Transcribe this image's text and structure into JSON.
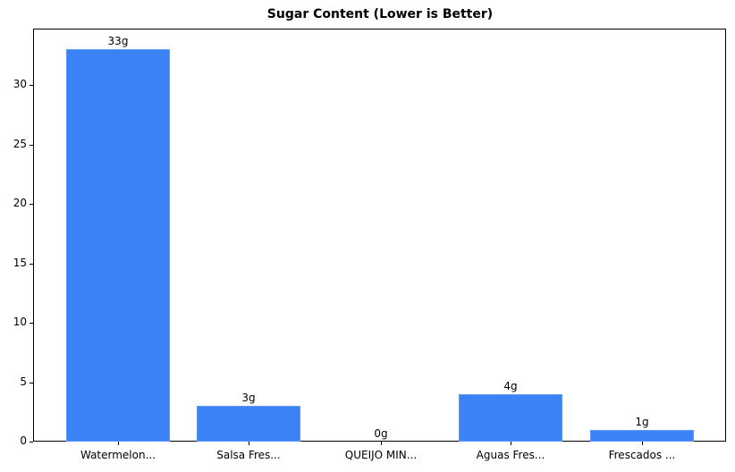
{
  "chart_data": {
    "type": "bar",
    "title": "Sugar Content (Lower is Better)",
    "xlabel": "",
    "ylabel": "",
    "categories": [
      "Watermelon...",
      "Salsa Fres...",
      "QUEIJO MIN...",
      "Aguas Fres...",
      "Frescados ..."
    ],
    "values": [
      33,
      3,
      0,
      4,
      1
    ],
    "value_labels": [
      "33g",
      "3g",
      "0g",
      "4g",
      "1g"
    ],
    "ylim": [
      0,
      34.65
    ],
    "yticks": [
      0,
      5,
      10,
      15,
      20,
      25,
      30
    ],
    "grid": false,
    "legend": null,
    "bar_color": "#3b82f6"
  }
}
